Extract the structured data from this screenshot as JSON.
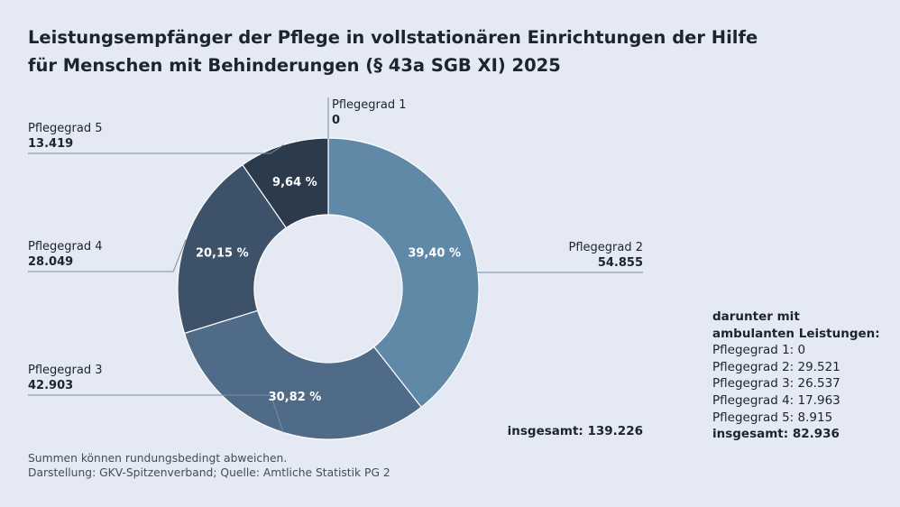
{
  "title": {
    "line1": "Leistungsempfänger der Pflege in vollstationären Einrichtungen der Hilfe",
    "line2": "für Menschen mit Behinderungen (§ 43a SGB XI) 2025"
  },
  "chart_data": {
    "type": "pie",
    "donut": true,
    "categories": [
      "Pflegegrad 1",
      "Pflegegrad 2",
      "Pflegegrad 3",
      "Pflegegrad 4",
      "Pflegegrad 5"
    ],
    "values": [
      0,
      54855,
      42903,
      28049,
      13419
    ],
    "value_labels": [
      "0",
      "54.855",
      "42.903",
      "28.049",
      "13.419"
    ],
    "percent_labels": [
      "",
      "39,40 %",
      "30,82 %",
      "20,15 %",
      "9,64 %"
    ],
    "colors": [
      "#6089a8",
      "#6089a8",
      "#4f6b87",
      "#3d5268",
      "#2c3b4b"
    ],
    "total_label": "insgesamt: 139.226"
  },
  "ambulant": {
    "header_line1": "darunter mit",
    "header_line2": "ambulanten Leistungen:",
    "items": [
      "Pflegegrad 1: 0",
      "Pflegegrad 2: 29.521",
      "Pflegegrad 3: 26.537",
      "Pflegegrad 4: 17.963",
      "Pflegegrad 5: 8.915"
    ],
    "total": "insgesamt: 82.936"
  },
  "footer": {
    "line1": "Summen können rundungsbedingt abweichen.",
    "line2": "Darstellung: GKV-Spitzenverband; Quelle: Amtliche Statistik PG 2"
  }
}
